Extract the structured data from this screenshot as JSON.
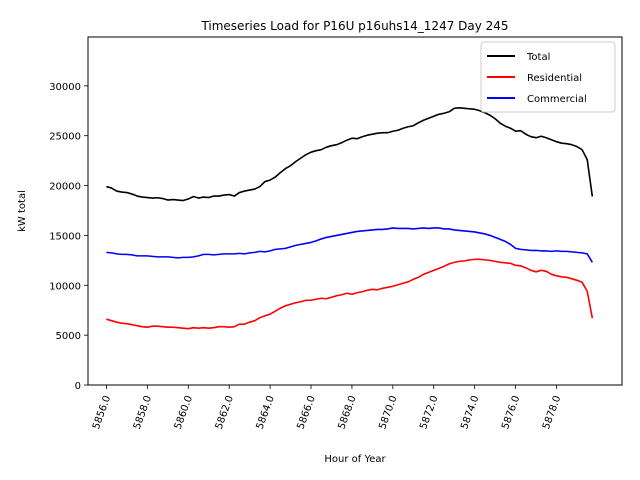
{
  "chart_data": {
    "type": "line",
    "title": "Timeseries Load for P16U p16uhs14_1247  Day 245",
    "xlabel": "Hour of Year",
    "ylabel": "kW total",
    "xlim": [
      5855.1,
      5881.2
    ],
    "ylim": [
      0,
      34900
    ],
    "xticks": [
      5856.0,
      5858.0,
      5860.0,
      5862.0,
      5864.0,
      5866.0,
      5868.0,
      5870.0,
      5872.0,
      5874.0,
      5876.0,
      5878.0
    ],
    "xtick_labels": [
      "5856.0",
      "5858.0",
      "5860.0",
      "5862.0",
      "5864.0",
      "5866.0",
      "5868.0",
      "5870.0",
      "5872.0",
      "5874.0",
      "5876.0",
      "5878.0"
    ],
    "yticks": [
      0,
      5000,
      10000,
      15000,
      20000,
      25000,
      30000
    ],
    "ytick_labels": [
      "0",
      "5000",
      "10000",
      "15000",
      "20000",
      "25000",
      "30000"
    ],
    "grid": false,
    "legend_position": "top-right",
    "x_start": 5856.0,
    "x_step": 0.25,
    "series": [
      {
        "name": "Total",
        "color": "#000000",
        "values": [
          19900,
          19750,
          19450,
          19350,
          19300,
          19150,
          18950,
          18850,
          18800,
          18750,
          18780,
          18700,
          18550,
          18600,
          18550,
          18500,
          18650,
          18900,
          18750,
          18850,
          18800,
          18950,
          18950,
          19050,
          19100,
          18950,
          19300,
          19450,
          19550,
          19650,
          19900,
          20400,
          20550,
          20850,
          21300,
          21700,
          22000,
          22400,
          22750,
          23100,
          23350,
          23500,
          23600,
          23850,
          24000,
          24100,
          24300,
          24550,
          24750,
          24700,
          24900,
          25050,
          25150,
          25250,
          25300,
          25300,
          25450,
          25550,
          25750,
          25900,
          26000,
          26300,
          26550,
          26750,
          26950,
          27150,
          27250,
          27400,
          27750,
          27800,
          27750,
          27700,
          27650,
          27500,
          27300,
          27050,
          26700,
          26250,
          25950,
          25750,
          25450,
          25500,
          25150,
          24900,
          24800,
          24950,
          24800,
          24600,
          24400,
          24250,
          24200,
          24100,
          23900,
          23600,
          22600,
          18900
        ]
      },
      {
        "name": "Residential",
        "color": "#ff0000",
        "values": [
          6600,
          6450,
          6300,
          6200,
          6150,
          6050,
          5950,
          5850,
          5800,
          5900,
          5900,
          5850,
          5800,
          5800,
          5750,
          5700,
          5650,
          5750,
          5700,
          5750,
          5700,
          5750,
          5850,
          5850,
          5800,
          5850,
          6100,
          6100,
          6300,
          6450,
          6750,
          6950,
          7100,
          7400,
          7700,
          7950,
          8100,
          8250,
          8350,
          8500,
          8500,
          8600,
          8700,
          8650,
          8800,
          8950,
          9050,
          9200,
          9100,
          9250,
          9350,
          9500,
          9600,
          9550,
          9700,
          9800,
          9900,
          10050,
          10200,
          10350,
          10600,
          10800,
          11100,
          11300,
          11500,
          11700,
          11900,
          12150,
          12300,
          12400,
          12450,
          12550,
          12600,
          12600,
          12550,
          12500,
          12400,
          12300,
          12250,
          12200,
          12000,
          11950,
          11750,
          11500,
          11350,
          11500,
          11400,
          11100,
          10950,
          10850,
          10800,
          10650,
          10500,
          10300,
          9400,
          6700
        ]
      },
      {
        "name": "Commercial",
        "color": "#0000ff",
        "values": [
          13300,
          13250,
          13150,
          13100,
          13100,
          13050,
          12950,
          12950,
          12950,
          12900,
          12850,
          12850,
          12850,
          12800,
          12750,
          12800,
          12800,
          12850,
          12950,
          13100,
          13100,
          13050,
          13100,
          13150,
          13150,
          13150,
          13200,
          13150,
          13250,
          13300,
          13400,
          13350,
          13450,
          13600,
          13650,
          13700,
          13850,
          14000,
          14100,
          14200,
          14300,
          14450,
          14650,
          14800,
          14900,
          15000,
          15100,
          15200,
          15300,
          15400,
          15450,
          15500,
          15550,
          15600,
          15600,
          15650,
          15750,
          15700,
          15700,
          15700,
          15650,
          15700,
          15750,
          15700,
          15750,
          15750,
          15650,
          15650,
          15550,
          15500,
          15450,
          15400,
          15350,
          15250,
          15150,
          15000,
          14800,
          14600,
          14400,
          14100,
          13700,
          13600,
          13550,
          13500,
          13500,
          13450,
          13450,
          13400,
          13450,
          13400,
          13400,
          13350,
          13300,
          13250,
          13150,
          12300
        ]
      }
    ]
  }
}
